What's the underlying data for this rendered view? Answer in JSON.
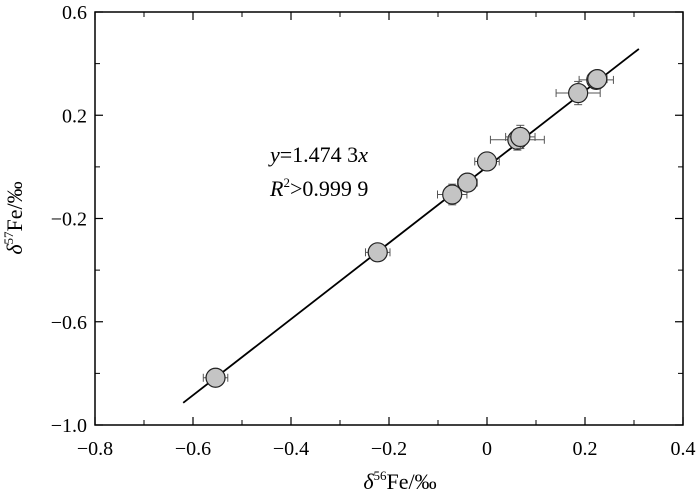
{
  "chart_data": {
    "type": "scatter",
    "title": "",
    "xlabel": {
      "prefix": "δ",
      "sup": "56",
      "suffix": "Fe/‰"
    },
    "ylabel": {
      "prefix": "δ",
      "sup": "57",
      "suffix": "Fe/‰"
    },
    "xlim": [
      -0.8,
      0.4
    ],
    "ylim": [
      -1.0,
      0.6
    ],
    "xticks": [
      -0.8,
      -0.6,
      -0.4,
      -0.2,
      0.0,
      0.2,
      0.4
    ],
    "yticks": [
      -1.0,
      -0.6,
      -0.2,
      0.2,
      0.6
    ],
    "xtick_labels": [
      "−0.8",
      "−0.6",
      "−0.4",
      "−0.2",
      "0",
      "0.2",
      "0.4"
    ],
    "ytick_labels": [
      "−1.0",
      "−0.6",
      "−0.2",
      "0.2",
      "0.6"
    ],
    "grid": false,
    "points": [
      {
        "x": -0.554,
        "y": -0.817,
        "xerr": 0.025,
        "yerr": 0.03
      },
      {
        "x": -0.223,
        "y": -0.331,
        "xerr": 0.025,
        "yerr": 0.025
      },
      {
        "x": -0.071,
        "y": -0.107,
        "xerr": 0.03,
        "yerr": 0.04
      },
      {
        "x": -0.04,
        "y": -0.061,
        "xerr": 0.02,
        "yerr": 0.025
      },
      {
        "x": 0.0,
        "y": 0.021,
        "xerr": 0.025,
        "yerr": 0.025
      },
      {
        "x": 0.062,
        "y": 0.105,
        "xerr": 0.055,
        "yerr": 0.04
      },
      {
        "x": 0.068,
        "y": 0.116,
        "xerr": 0.03,
        "yerr": 0.045
      },
      {
        "x": 0.186,
        "y": 0.286,
        "xerr": 0.045,
        "yerr": 0.045
      },
      {
        "x": 0.223,
        "y": 0.337,
        "xerr": 0.035,
        "yerr": 0.025
      },
      {
        "x": 0.225,
        "y": 0.34,
        "xerr": 0.02,
        "yerr": 0.02
      }
    ],
    "fit": {
      "slope": 1.4743,
      "x_range": [
        -0.62,
        0.31
      ]
    },
    "annotations": {
      "equation": {
        "y": "y",
        "eq": "=1.474 3",
        "x": "x"
      },
      "r2": {
        "r": "R",
        "sup": "2",
        "rest": ">0.999 9"
      }
    },
    "colors": {
      "marker_fill": "#c4c4c4",
      "marker_stroke": "#222222",
      "errorbar": "#555555",
      "line": "#000000"
    }
  }
}
